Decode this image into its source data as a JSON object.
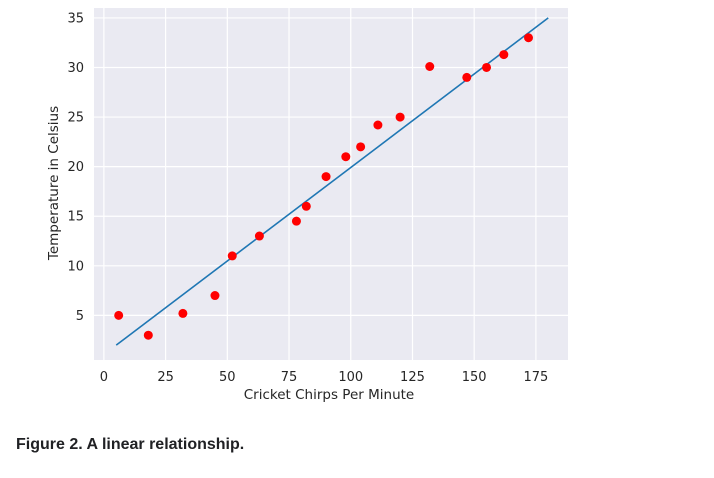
{
  "figure": {
    "caption": "Figure 2. A linear relationship."
  },
  "colors": {
    "background": "#eaeaf2",
    "grid": "#ffffff",
    "points": "#ff0000",
    "line": "#1f77b4"
  },
  "chart_data": {
    "type": "scatter",
    "title": "",
    "xlabel": "Cricket Chirps Per Minute",
    "ylabel": "Temperature in Celsius",
    "xlim": [
      -4,
      188
    ],
    "ylim": [
      0.5,
      36
    ],
    "xticks": [
      0,
      25,
      50,
      75,
      100,
      125,
      150,
      175
    ],
    "yticks": [
      5,
      10,
      15,
      20,
      25,
      30,
      35
    ],
    "grid": true,
    "legend": "none",
    "series": [
      {
        "marker": "circle",
        "color": "#ff0000",
        "points": [
          {
            "x": 6,
            "y": 5
          },
          {
            "x": 18,
            "y": 3
          },
          {
            "x": 32,
            "y": 5.2
          },
          {
            "x": 45,
            "y": 7
          },
          {
            "x": 52,
            "y": 11
          },
          {
            "x": 63,
            "y": 13
          },
          {
            "x": 78,
            "y": 14.5
          },
          {
            "x": 82,
            "y": 16
          },
          {
            "x": 90,
            "y": 19
          },
          {
            "x": 98,
            "y": 21
          },
          {
            "x": 104,
            "y": 22
          },
          {
            "x": 111,
            "y": 24.2
          },
          {
            "x": 120,
            "y": 25
          },
          {
            "x": 132,
            "y": 30.1
          },
          {
            "x": 147,
            "y": 29
          },
          {
            "x": 155,
            "y": 30
          },
          {
            "x": 162,
            "y": 31.3
          },
          {
            "x": 172,
            "y": 33
          }
        ]
      }
    ],
    "fit_line": {
      "color": "#1f77b4",
      "points": [
        {
          "x": 5,
          "y": 2
        },
        {
          "x": 180,
          "y": 35
        }
      ]
    }
  }
}
